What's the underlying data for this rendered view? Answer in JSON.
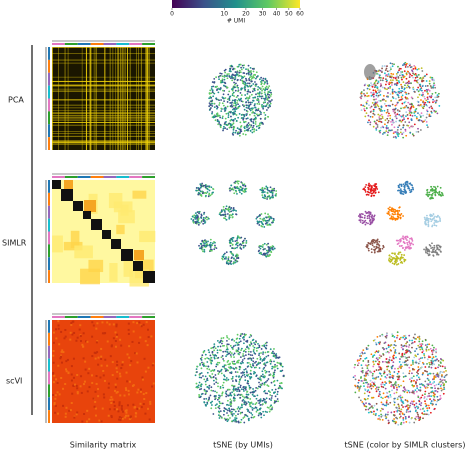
{
  "colorbar": {
    "label": "# UMI",
    "lim": [
      0,
      60
    ],
    "ticks": [
      0,
      10,
      20,
      30,
      40,
      50,
      60
    ],
    "scale": "sqrt",
    "colors": [
      "#440154",
      "#3b528b",
      "#21918c",
      "#5ec962",
      "#fde725"
    ]
  },
  "rows": [
    {
      "label": "PCA"
    },
    {
      "label": "SIMLR"
    },
    {
      "label": "scVI"
    }
  ],
  "columns": [
    "Similarity matrix",
    "tSNE (by UMIs)",
    "tSNE (color by SIMLR clusters)"
  ]
}
